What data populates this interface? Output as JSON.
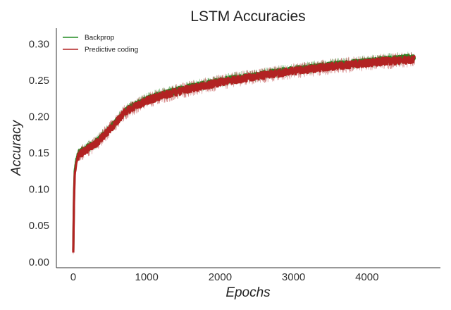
{
  "chart_data": {
    "type": "line",
    "title": "LSTM Accuracies",
    "xlabel": "Epochs",
    "ylabel": "Accuracy",
    "xlim": [
      -230,
      5000
    ],
    "ylim": [
      -0.008,
      0.322
    ],
    "xticks": [
      0,
      1000,
      2000,
      3000,
      4000
    ],
    "xtick_labels": [
      "0",
      "1000",
      "2000",
      "3000",
      "4000"
    ],
    "yticks": [
      0.0,
      0.05,
      0.1,
      0.15,
      0.2,
      0.25,
      0.3
    ],
    "ytick_labels": [
      "0.00",
      "0.05",
      "0.10",
      "0.15",
      "0.20",
      "0.25",
      "0.30"
    ],
    "grid": false,
    "legend_position": "top-left",
    "series": [
      {
        "name": "Backprop",
        "color": "#228b22",
        "x": [
          0,
          10,
          20,
          40,
          60,
          100,
          150,
          200,
          300,
          400,
          500,
          600,
          700,
          800,
          900,
          1000,
          1200,
          1400,
          1600,
          1800,
          2000,
          2200,
          2400,
          2600,
          2800,
          3000,
          3200,
          3400,
          3600,
          3800,
          4000,
          4200,
          4400,
          4650
        ],
        "values": [
          0.015,
          0.09,
          0.125,
          0.14,
          0.148,
          0.152,
          0.155,
          0.158,
          0.164,
          0.174,
          0.184,
          0.195,
          0.207,
          0.214,
          0.219,
          0.224,
          0.231,
          0.236,
          0.241,
          0.245,
          0.249,
          0.253,
          0.256,
          0.259,
          0.262,
          0.265,
          0.267,
          0.27,
          0.272,
          0.274,
          0.276,
          0.278,
          0.28,
          0.282
        ],
        "noise": 0.009
      },
      {
        "name": "Predictive coding",
        "color": "#b22222",
        "x": [
          0,
          10,
          20,
          40,
          60,
          100,
          150,
          200,
          300,
          400,
          500,
          600,
          700,
          800,
          900,
          1000,
          1200,
          1400,
          1600,
          1800,
          2000,
          2200,
          2400,
          2600,
          2800,
          3000,
          3200,
          3400,
          3600,
          3800,
          4000,
          4200,
          4400,
          4650
        ],
        "values": [
          0.012,
          0.085,
          0.12,
          0.136,
          0.144,
          0.149,
          0.152,
          0.156,
          0.162,
          0.172,
          0.183,
          0.194,
          0.206,
          0.212,
          0.217,
          0.222,
          0.229,
          0.234,
          0.239,
          0.243,
          0.247,
          0.251,
          0.254,
          0.257,
          0.26,
          0.263,
          0.265,
          0.268,
          0.27,
          0.272,
          0.274,
          0.276,
          0.277,
          0.279
        ],
        "noise": 0.011
      }
    ]
  }
}
